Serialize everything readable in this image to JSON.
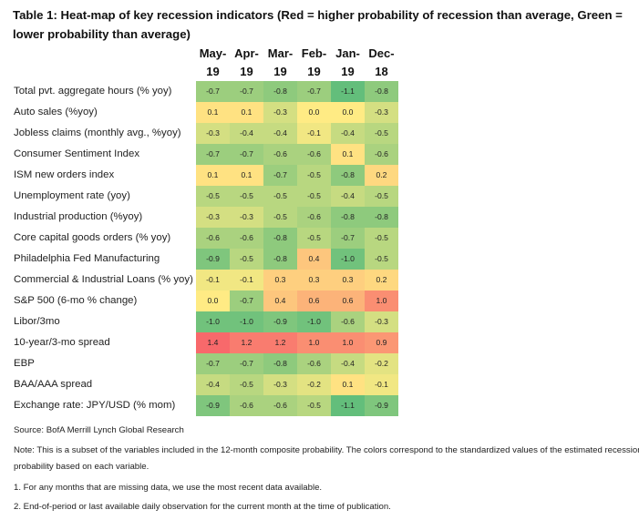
{
  "title": "Table 1: Heat-map of key recession indicators (Red = higher probability of recession than average, Green = lower probability than average)",
  "chart_data": {
    "type": "heatmap",
    "columns": [
      {
        "line1": "May-",
        "line2": "19"
      },
      {
        "line1": "Apr-",
        "line2": "19"
      },
      {
        "line1": "Mar-",
        "line2": "19"
      },
      {
        "line1": "Feb-",
        "line2": "19"
      },
      {
        "line1": "Jan-",
        "line2": "19"
      },
      {
        "line1": "Dec-",
        "line2": "18"
      }
    ],
    "rows": [
      {
        "label": "Total pvt. aggregate hours (% yoy)",
        "values": [
          -0.7,
          -0.7,
          -0.8,
          -0.7,
          -1.1,
          -0.8
        ]
      },
      {
        "label": "Auto sales (%yoy)",
        "values": [
          0.1,
          0.1,
          -0.3,
          0.0,
          0.0,
          -0.3
        ]
      },
      {
        "label": "Jobless claims (monthly avg., %yoy)",
        "values": [
          -0.3,
          -0.4,
          -0.4,
          -0.1,
          -0.4,
          -0.5
        ]
      },
      {
        "label": "Consumer Sentiment Index",
        "values": [
          -0.7,
          -0.7,
          -0.6,
          -0.6,
          0.1,
          -0.6
        ]
      },
      {
        "label": "ISM new orders index",
        "values": [
          0.1,
          0.1,
          -0.7,
          -0.5,
          -0.8,
          0.2
        ]
      },
      {
        "label": "Unemployment rate (yoy)",
        "values": [
          -0.5,
          -0.5,
          -0.5,
          -0.5,
          -0.4,
          -0.5
        ]
      },
      {
        "label": "Industrial production (%yoy)",
        "values": [
          -0.3,
          -0.3,
          -0.5,
          -0.6,
          -0.8,
          -0.8
        ]
      },
      {
        "label": "Core capital goods orders (% yoy)",
        "values": [
          -0.6,
          -0.6,
          -0.8,
          -0.5,
          -0.7,
          -0.5
        ]
      },
      {
        "label": "Philadelphia Fed Manufacturing",
        "values": [
          -0.9,
          -0.5,
          -0.8,
          0.4,
          -1.0,
          -0.5
        ]
      },
      {
        "label": "Commercial & Industrial Loans (% yoy)",
        "values": [
          -0.1,
          -0.1,
          0.3,
          0.3,
          0.3,
          0.2
        ]
      },
      {
        "label": "S&P 500 (6-mo % change)",
        "values": [
          0.0,
          -0.7,
          0.4,
          0.6,
          0.6,
          1.0
        ]
      },
      {
        "label": "Libor/3mo",
        "values": [
          -1.0,
          -1.0,
          -0.9,
          -1.0,
          -0.6,
          -0.3
        ]
      },
      {
        "label": "10-year/3-mo spread",
        "values": [
          1.4,
          1.2,
          1.2,
          1.0,
          1.0,
          0.9
        ]
      },
      {
        "label": "EBP",
        "values": [
          -0.7,
          -0.7,
          -0.8,
          -0.6,
          -0.4,
          -0.2
        ]
      },
      {
        "label": "BAA/AAA spread",
        "values": [
          -0.4,
          -0.5,
          -0.3,
          -0.2,
          0.1,
          -0.1
        ]
      },
      {
        "label": "Exchange rate: JPY/USD (% mom)",
        "values": [
          -0.9,
          -0.6,
          -0.6,
          -0.5,
          -1.1,
          -0.9
        ]
      }
    ],
    "colors": {
      "low": "#63be7b",
      "mid": "#ffeb84",
      "high": "#f8696b"
    },
    "scale_range": [
      -1.1,
      1.4
    ]
  },
  "notes": [
    "Source: BofA Merrill Lynch Global Research",
    "Note: This is a subset of the variables included in the 12-month composite probability. The colors correspond to the standardized values of the estimated recession",
    "probability based on each variable.",
    "1. For any months that are missing data, we use the most recent data available.",
    "2. End-of-period or last available daily observation for the current month at the time of publication."
  ]
}
